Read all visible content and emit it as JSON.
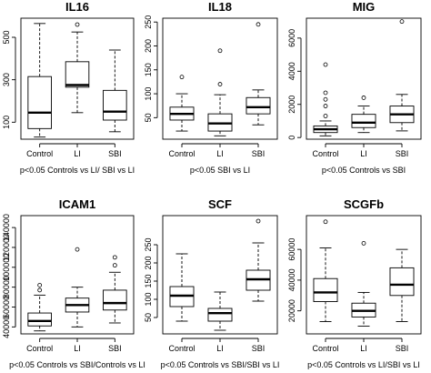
{
  "chart_data": [
    {
      "type": "box",
      "title": "IL16",
      "categories": [
        "Control",
        "LI",
        "SBI"
      ],
      "ylim": [
        20,
        590
      ],
      "yticks": [
        100,
        300,
        500
      ],
      "boxes": [
        {
          "min": 30,
          "q1": 70,
          "median": 145,
          "q3": 315,
          "max": 565,
          "outliers": []
        },
        {
          "min": 145,
          "q1": 265,
          "median": 275,
          "q3": 385,
          "max": 525,
          "outliers": [
            560
          ]
        },
        {
          "min": 55,
          "q1": 110,
          "median": 150,
          "q3": 250,
          "max": 440,
          "outliers": []
        }
      ],
      "note": "p<0.05 Controls vs LI/ SBI vs LI"
    },
    {
      "type": "box",
      "title": "IL18",
      "categories": [
        "Control",
        "LI",
        "SBI"
      ],
      "ylim": [
        5,
        258
      ],
      "yticks": [
        0,
        50,
        100,
        150,
        200,
        250
      ],
      "boxes": [
        {
          "min": 22,
          "q1": 45,
          "median": 58,
          "q3": 72,
          "max": 100,
          "outliers": [
            135
          ]
        },
        {
          "min": 12,
          "q1": 22,
          "median": 38,
          "q3": 58,
          "max": 98,
          "outliers": [
            120,
            190
          ]
        },
        {
          "min": 35,
          "q1": 58,
          "median": 72,
          "q3": 92,
          "max": 108,
          "outliers": [
            245
          ]
        }
      ],
      "note": "p<0.05 SBI vs LI"
    },
    {
      "type": "box",
      "title": "MIG",
      "categories": [
        "Control",
        "LI",
        "SBI"
      ],
      "ylim": [
        -100,
        7200
      ],
      "yticks": [
        0,
        2000,
        4000,
        6000
      ],
      "boxes": [
        {
          "min": 100,
          "q1": 300,
          "median": 500,
          "q3": 700,
          "max": 1000,
          "outliers": [
            1300,
            1900,
            2300,
            2700,
            4400
          ]
        },
        {
          "min": 300,
          "q1": 600,
          "median": 900,
          "q3": 1400,
          "max": 1900,
          "outliers": [
            2400
          ]
        },
        {
          "min": 400,
          "q1": 900,
          "median": 1400,
          "q3": 1900,
          "max": 2600,
          "outliers": [
            7000
          ]
        }
      ],
      "note": "p<0.05 Controls vs SBI"
    },
    {
      "type": "box",
      "title": "ICAM1",
      "categories": [
        "Control",
        "LI",
        "SBI"
      ],
      "ylim": [
        33000,
        152000
      ],
      "yticks": [
        40000,
        80000,
        120000
      ],
      "yticks_extra": [
        60000,
        100000,
        140000
      ],
      "boxes": [
        {
          "min": 36000,
          "q1": 41000,
          "median": 46000,
          "q3": 54000,
          "max": 72000,
          "outliers": [
            77000,
            82000
          ]
        },
        {
          "min": 40000,
          "q1": 55000,
          "median": 62000,
          "q3": 69000,
          "max": 80000,
          "outliers": [
            118000
          ]
        },
        {
          "min": 44000,
          "q1": 57000,
          "median": 64000,
          "q3": 77000,
          "max": 95000,
          "outliers": [
            102000,
            110000
          ]
        }
      ],
      "note": "p<0.05 Controls vs SBI/Controls vs LI"
    },
    {
      "type": "box",
      "title": "SCF",
      "categories": [
        "Control",
        "LI",
        "SBI"
      ],
      "ylim": [
        5,
        330
      ],
      "yticks": [
        50,
        100,
        150,
        200,
        250
      ],
      "boxes": [
        {
          "min": 40,
          "q1": 80,
          "median": 110,
          "q3": 135,
          "max": 225,
          "outliers": []
        },
        {
          "min": 15,
          "q1": 40,
          "median": 62,
          "q3": 75,
          "max": 120,
          "outliers": []
        },
        {
          "min": 95,
          "q1": 125,
          "median": 155,
          "q3": 180,
          "max": 255,
          "outliers": [
            315
          ]
        }
      ],
      "note": "p<0.05 Controls vs SBI/SBI vs LI"
    },
    {
      "type": "box",
      "title": "SCGFb",
      "categories": [
        "Control",
        "LI",
        "SBI"
      ],
      "ylim": [
        5000,
        82000
      ],
      "yticks": [
        20000,
        40000,
        60000
      ],
      "boxes": [
        {
          "min": 13000,
          "q1": 26000,
          "median": 32000,
          "q3": 41000,
          "max": 61000,
          "outliers": [
            78000
          ]
        },
        {
          "min": 10000,
          "q1": 16000,
          "median": 20000,
          "q3": 25000,
          "max": 32000,
          "outliers": [
            64000
          ]
        },
        {
          "min": 13000,
          "q1": 30000,
          "median": 37000,
          "q3": 48000,
          "max": 60000,
          "outliers": []
        }
      ],
      "note": "p<0.05 Controls vs LI/SBI vs LI"
    }
  ]
}
